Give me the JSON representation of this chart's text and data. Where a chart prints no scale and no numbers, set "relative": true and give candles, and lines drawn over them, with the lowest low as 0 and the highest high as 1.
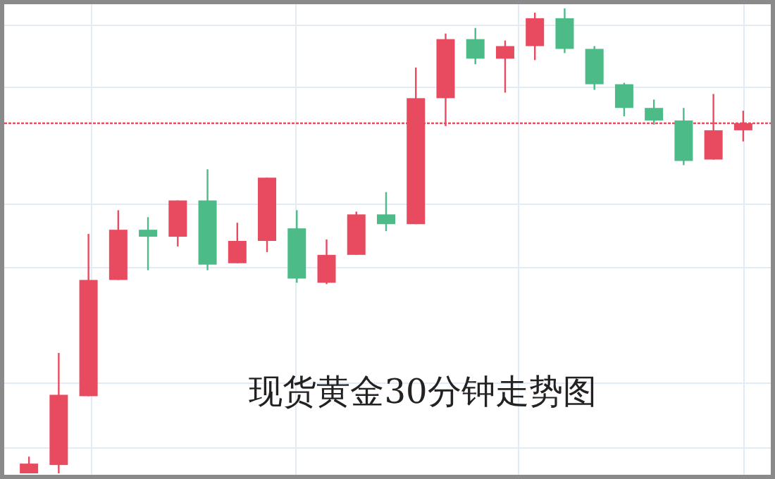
{
  "chart_data": {
    "type": "candlestick",
    "title": "现货黄金30分钟走势图",
    "relative": true,
    "grid": true,
    "categories": [
      null,
      null,
      null,
      null,
      null,
      null,
      null,
      null,
      null,
      null,
      null,
      null,
      null,
      null,
      null,
      null,
      null,
      null,
      null,
      null,
      null,
      null,
      null,
      null,
      null
    ],
    "ohlc": [
      [
        0,
        0.036,
        0,
        0.021
      ],
      [
        0.018,
        0.259,
        0,
        0.169
      ],
      [
        0.166,
        0.515,
        0.166,
        0.416
      ],
      [
        0.416,
        0.566,
        0.416,
        0.524
      ],
      [
        0.524,
        0.551,
        0.437,
        0.509
      ],
      [
        0.509,
        0.587,
        0.488,
        0.587
      ],
      [
        0.587,
        0.654,
        0.437,
        0.449
      ],
      [
        0.452,
        0.539,
        0.452,
        0.5
      ],
      [
        0.5,
        0.636,
        0.476,
        0.636
      ],
      [
        0.527,
        0.566,
        0.41,
        0.419
      ],
      [
        0.41,
        0.503,
        0.407,
        0.47
      ],
      [
        0.47,
        0.563,
        0.47,
        0.557
      ],
      [
        0.557,
        0.605,
        0.521,
        0.536
      ],
      [
        0.536,
        0.873,
        0.536,
        0.807
      ],
      [
        0.807,
        0.946,
        0.747,
        0.934
      ],
      [
        0.934,
        0.958,
        0.88,
        0.892
      ],
      [
        0.892,
        0.931,
        0.819,
        0.919
      ],
      [
        0.919,
        0.991,
        0.889,
        0.979
      ],
      [
        0.979,
        1,
        0.904,
        0.913
      ],
      [
        0.913,
        0.919,
        0.825,
        0.837
      ],
      [
        0.837,
        0.84,
        0.768,
        0.786
      ],
      [
        0.786,
        0.804,
        0.75,
        0.759
      ],
      [
        0.759,
        0.786,
        0.663,
        0.672
      ],
      [
        0.675,
        0.816,
        0.675,
        0.738
      ],
      [
        0.738,
        0.78,
        0.714,
        0.753
      ]
    ],
    "colors": [
      "#e84a5f",
      "#e84a5f",
      "#e84a5f",
      "#e84a5f",
      "#4cbb88",
      "#e84a5f",
      "#4cbb88",
      "#e84a5f",
      "#e84a5f",
      "#4cbb88",
      "#e84a5f",
      "#e84a5f",
      "#4cbb88",
      "#e84a5f",
      "#e84a5f",
      "#4cbb88",
      "#e84a5f",
      "#e84a5f",
      "#4cbb88",
      "#4cbb88",
      "#4cbb88",
      "#4cbb88",
      "#4cbb88",
      "#e84a5f",
      "#e84a5f"
    ],
    "ref_lines": [
      {
        "axis": "y",
        "value": 0.753,
        "color": "#e84a5f",
        "line_style": "dotted"
      }
    ]
  }
}
